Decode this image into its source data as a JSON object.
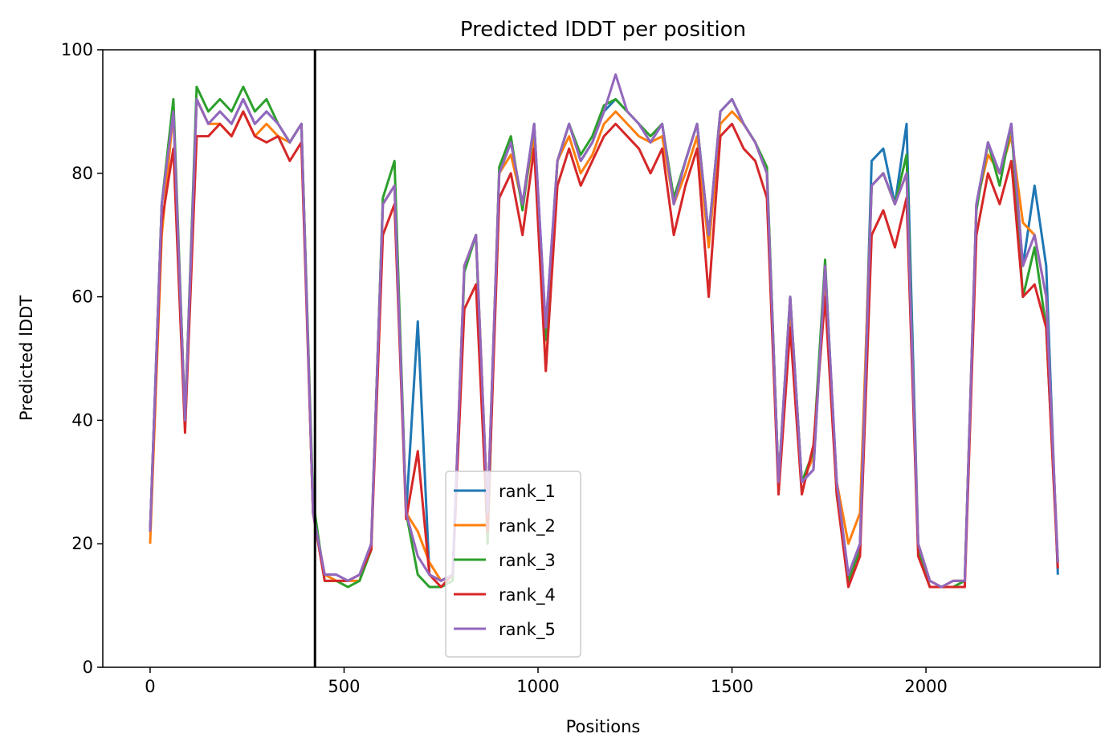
{
  "chart_data": {
    "type": "line",
    "title": "Predicted lDDT per position",
    "xlabel": "Positions",
    "ylabel": "Predicted lDDT",
    "x": [
      0,
      30,
      60,
      90,
      120,
      150,
      180,
      210,
      240,
      270,
      300,
      330,
      360,
      390,
      420,
      450,
      480,
      510,
      540,
      570,
      600,
      630,
      660,
      690,
      720,
      750,
      780,
      810,
      840,
      870,
      900,
      930,
      960,
      990,
      1020,
      1050,
      1080,
      1110,
      1140,
      1170,
      1200,
      1230,
      1260,
      1290,
      1320,
      1350,
      1380,
      1410,
      1440,
      1470,
      1500,
      1530,
      1560,
      1590,
      1620,
      1650,
      1680,
      1710,
      1740,
      1770,
      1800,
      1830,
      1860,
      1890,
      1920,
      1950,
      1980,
      2010,
      2040,
      2070,
      2100,
      2130,
      2160,
      2190,
      2220,
      2250,
      2280,
      2310,
      2340
    ],
    "series": [
      {
        "name": "rank_1",
        "color": "#1f77b4",
        "values": [
          22,
          75,
          90,
          40,
          92,
          88,
          90,
          88,
          92,
          88,
          90,
          88,
          85,
          88,
          25,
          15,
          15,
          14,
          15,
          20,
          75,
          78,
          25,
          56,
          15,
          14,
          15,
          65,
          70,
          25,
          80,
          85,
          75,
          88,
          55,
          82,
          88,
          82,
          85,
          90,
          92,
          90,
          88,
          85,
          88,
          75,
          82,
          88,
          70,
          90,
          92,
          88,
          85,
          80,
          30,
          60,
          30,
          32,
          65,
          30,
          15,
          20,
          82,
          84,
          75,
          88,
          20,
          14,
          13,
          14,
          14,
          75,
          85,
          80,
          88,
          65,
          78,
          65,
          15
        ]
      },
      {
        "name": "rank_2",
        "color": "#ff7f0e",
        "values": [
          20,
          70,
          90,
          40,
          92,
          88,
          88,
          86,
          90,
          86,
          88,
          86,
          85,
          88,
          25,
          15,
          14,
          14,
          14,
          20,
          75,
          78,
          25,
          22,
          17,
          14,
          15,
          65,
          70,
          25,
          80,
          83,
          75,
          86,
          48,
          82,
          86,
          80,
          83,
          88,
          90,
          88,
          86,
          85,
          86,
          75,
          80,
          86,
          68,
          88,
          90,
          88,
          85,
          80,
          30,
          58,
          30,
          34,
          63,
          30,
          20,
          25,
          78,
          80,
          75,
          80,
          20,
          14,
          13,
          14,
          14,
          75,
          83,
          80,
          86,
          72,
          70,
          60,
          17
        ]
      },
      {
        "name": "rank_3",
        "color": "#2ca02c",
        "values": [
          22,
          75,
          92,
          40,
          94,
          90,
          92,
          90,
          94,
          90,
          92,
          88,
          85,
          88,
          27,
          14,
          14,
          13,
          14,
          19,
          76,
          82,
          25,
          15,
          13,
          13,
          14,
          64,
          70,
          20,
          81,
          86,
          74,
          88,
          53,
          82,
          88,
          83,
          86,
          91,
          92,
          90,
          88,
          86,
          88,
          76,
          82,
          88,
          70,
          90,
          92,
          88,
          85,
          81,
          30,
          60,
          30,
          35,
          66,
          28,
          14,
          19,
          78,
          80,
          75,
          83,
          19,
          13,
          13,
          13,
          14,
          74,
          85,
          78,
          88,
          60,
          68,
          55,
          17
        ]
      },
      {
        "name": "rank_4",
        "color": "#d62728",
        "values": [
          22,
          72,
          84,
          38,
          86,
          86,
          88,
          86,
          90,
          86,
          85,
          86,
          82,
          85,
          25,
          14,
          14,
          14,
          15,
          19,
          70,
          75,
          24,
          35,
          15,
          13,
          15,
          58,
          62,
          22,
          76,
          80,
          70,
          84,
          48,
          78,
          84,
          78,
          82,
          86,
          88,
          86,
          84,
          80,
          84,
          70,
          78,
          84,
          60,
          86,
          88,
          84,
          82,
          76,
          28,
          55,
          28,
          36,
          60,
          28,
          13,
          18,
          70,
          74,
          68,
          76,
          18,
          13,
          13,
          13,
          13,
          70,
          80,
          75,
          82,
          60,
          62,
          55,
          16
        ]
      },
      {
        "name": "rank_5",
        "color": "#9467bd",
        "values": [
          22,
          75,
          90,
          40,
          92,
          88,
          90,
          88,
          92,
          88,
          90,
          88,
          85,
          88,
          25,
          15,
          15,
          14,
          15,
          20,
          75,
          78,
          25,
          18,
          15,
          14,
          15,
          65,
          70,
          25,
          80,
          85,
          75,
          88,
          55,
          82,
          88,
          82,
          85,
          90,
          96,
          90,
          88,
          85,
          88,
          75,
          82,
          88,
          70,
          90,
          92,
          88,
          85,
          80,
          30,
          60,
          30,
          32,
          65,
          30,
          15,
          20,
          78,
          80,
          75,
          80,
          20,
          14,
          13,
          14,
          14,
          75,
          85,
          80,
          88,
          65,
          70,
          60,
          17
        ]
      }
    ],
    "xlim": [
      -122,
      2449
    ],
    "ylim": [
      0,
      100
    ],
    "xticks": [
      0,
      500,
      1000,
      1500,
      2000
    ],
    "yticks": [
      0,
      20,
      40,
      60,
      80,
      100
    ],
    "vline": 425,
    "legend": "lower center"
  }
}
